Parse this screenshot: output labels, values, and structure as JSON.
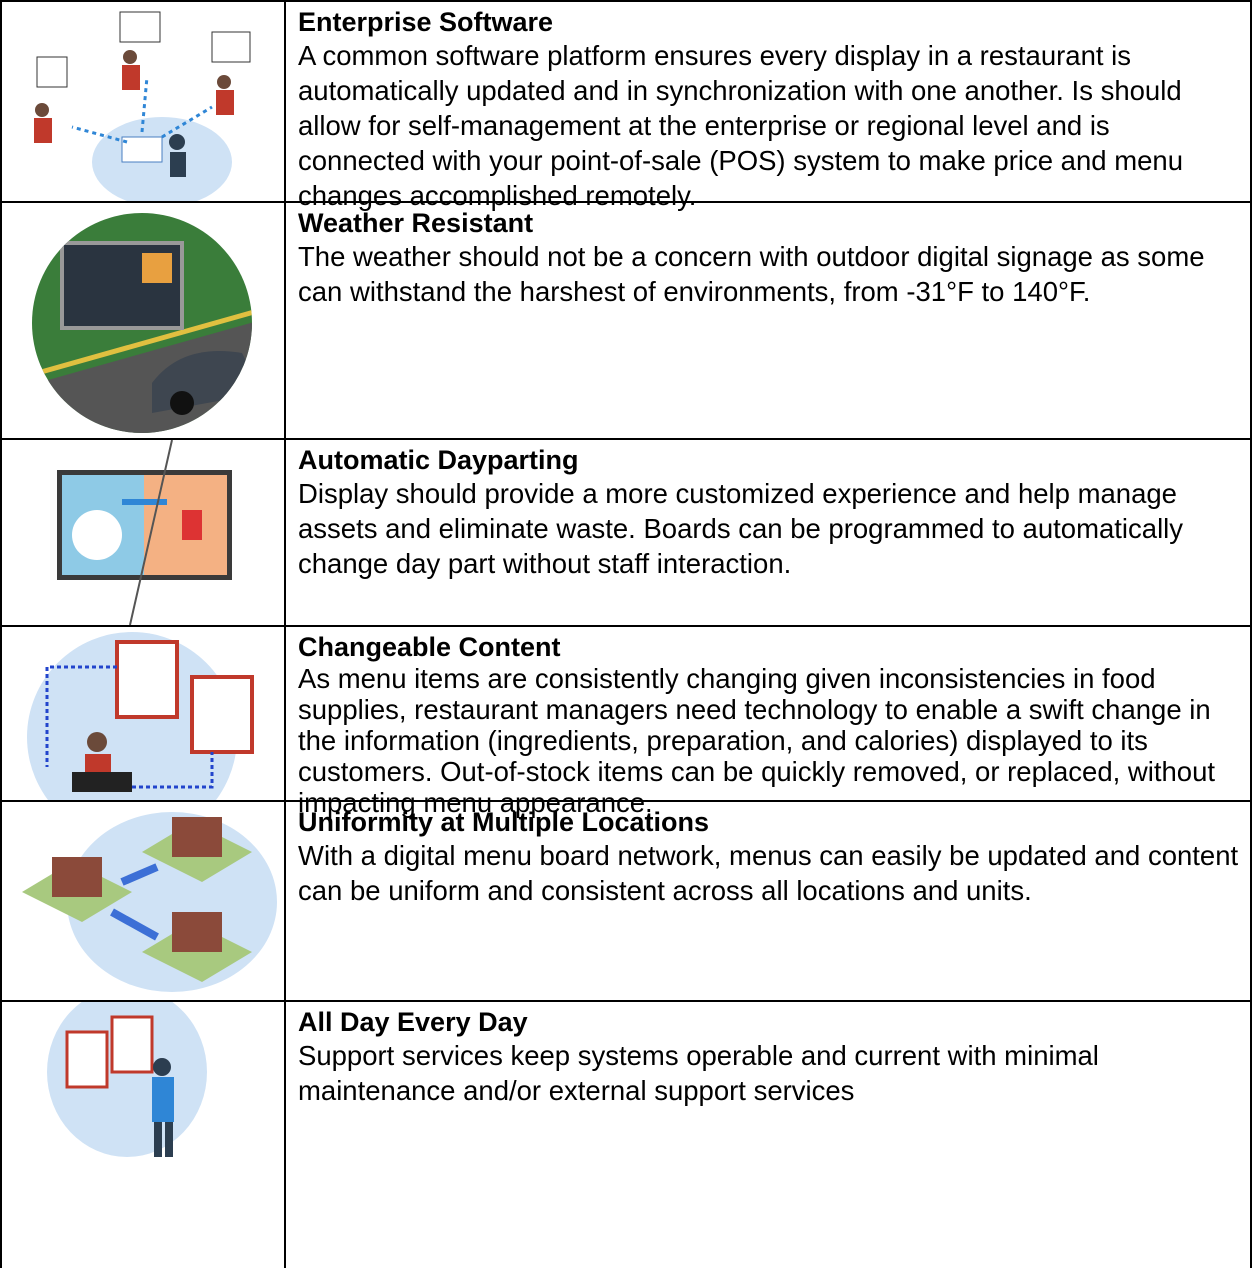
{
  "table": {
    "rows": [
      {
        "title": "Enterprise Software",
        "text": "A common software platform ensures every display in a restaurant is automatically updated and in synchronization with one another. Is should allow for self-management at the enterprise or regional level and is connected with your point-of-sale (POS) system to make price and menu changes accomplished remotely."
      },
      {
        "title": "Weather Resistant",
        "text": "The weather should not be a concern with outdoor digital signage as some can withstand the harshest of environments, from -31°F to 140°F."
      },
      {
        "title": "Automatic Dayparting",
        "text": "Display should provide a more customized experience and help manage assets and eliminate waste. Boards can be programmed to automatically change day part without staff interaction."
      },
      {
        "title": "Changeable Content",
        "text": "As menu items are consistently changing given inconsistencies in food supplies, restaurant managers need technology to enable a swift change in the information (ingredients, preparation, and calories) displayed to its customers. Out-of-stock items can be quickly removed, or replaced, without impacting menu appearance."
      },
      {
        "title": "Uniformity at Multiple Locations",
        "text": "With a digital menu board network, menus can easily be updated and content can be uniform and consistent across all locations and units."
      },
      {
        "title": "All Day Every Day",
        "text": "Support services keep systems operable and current with minimal maintenance and/or external support services"
      }
    ]
  }
}
